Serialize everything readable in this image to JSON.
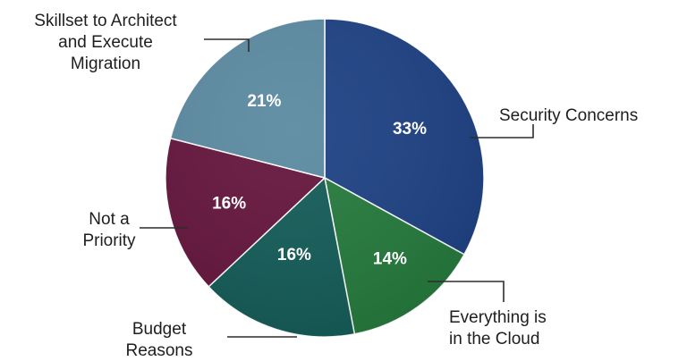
{
  "chart_data": {
    "type": "pie",
    "title": "",
    "slices": [
      {
        "label": "Security Concerns",
        "label_lines": [
          "Security Concerns"
        ],
        "value": 33,
        "value_label": "33%",
        "color": "#1d4183"
      },
      {
        "label": "Everything is in the Cloud",
        "label_lines": [
          "Everything is",
          "in the Cloud"
        ],
        "value": 14,
        "value_label": "14%",
        "color": "#247a3c"
      },
      {
        "label": "Budget Reasons",
        "label_lines": [
          "Budget",
          "Reasons"
        ],
        "value": 16,
        "value_label": "16%",
        "color": "#135b57"
      },
      {
        "label": "Not a Priority",
        "label_lines": [
          "Not a",
          "Priority"
        ],
        "value": 16,
        "value_label": "16%",
        "color": "#65153d"
      },
      {
        "label": "Skillset to Architect and Execute Migration",
        "label_lines": [
          "Skillset to Architect",
          "and Execute",
          "Migration"
        ],
        "value": 21,
        "value_label": "21%",
        "color": "#5b8aa1"
      }
    ],
    "start_angle_deg": 0,
    "direction": "clockwise",
    "legend": "none",
    "data_labels": "inside",
    "category_labels": "callouts"
  }
}
